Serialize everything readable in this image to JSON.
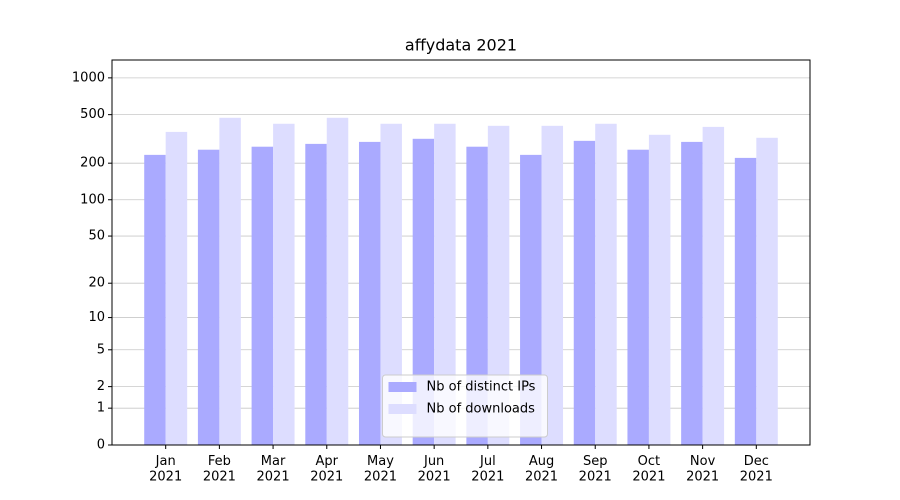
{
  "chart_data": {
    "type": "bar",
    "title": "affydata 2021",
    "categories": [
      "Jan\n2021",
      "Feb\n2021",
      "Mar\n2021",
      "Apr\n2021",
      "May\n2021",
      "Jun\n2021",
      "Jul\n2021",
      "Aug\n2021",
      "Sep\n2021",
      "Oct\n2021",
      "Nov\n2021",
      "Dec\n2021"
    ],
    "series": [
      {
        "name": "Nb of distinct IPs",
        "color": "#aaaaff",
        "values": [
          234,
          258,
          273,
          288,
          299,
          317,
          273,
          234,
          305,
          258,
          299,
          221
        ]
      },
      {
        "name": "Nb of downloads",
        "color": "#ddddff",
        "values": [
          361,
          471,
          421,
          471,
          421,
          421,
          405,
          405,
          421,
          342,
          397,
          323
        ]
      }
    ],
    "y_scale": "log1p",
    "ylim": [
      0,
      1400
    ],
    "yticks": [
      0,
      1,
      2,
      5,
      10,
      20,
      50,
      100,
      200,
      500,
      1000
    ],
    "grid": true,
    "legend": "lower center"
  }
}
